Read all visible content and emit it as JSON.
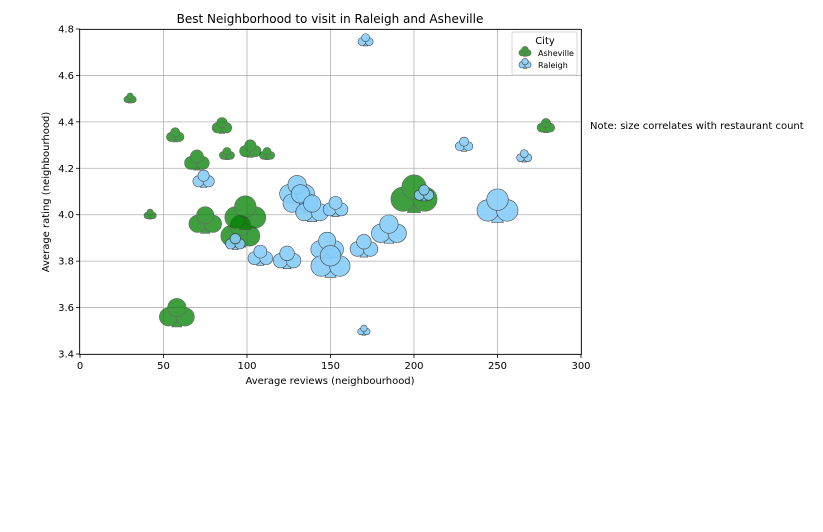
{
  "chart_data": {
    "type": "scatter",
    "title": "Best Neighborhood to visit in Raleigh and Asheville",
    "xlabel": "Average reviews (neighbourhood)",
    "ylabel": "Average rating (neighbourhood)",
    "xlim": [
      0,
      300
    ],
    "ylim": [
      3.4,
      4.8
    ],
    "xticks": [
      "0",
      "50",
      "100",
      "150",
      "200",
      "250",
      "300"
    ],
    "yticks": [
      "3.4",
      "3.6",
      "3.8",
      "4.0",
      "4.2",
      "4.4",
      "4.6",
      "4.8"
    ],
    "grid": true,
    "marker": "club",
    "legend": {
      "title": "City",
      "placement": "top-right"
    },
    "size_encodes": "restaurant count",
    "series": [
      {
        "name": "Asheville",
        "color": "#008000",
        "points": [
          {
            "x": 30,
            "y": 4.5,
            "size": 2
          },
          {
            "x": 42,
            "y": 4.0,
            "size": 2
          },
          {
            "x": 57,
            "y": 4.34,
            "size": 4
          },
          {
            "x": 58,
            "y": 3.57,
            "size": 16
          },
          {
            "x": 70,
            "y": 4.23,
            "size": 8
          },
          {
            "x": 75,
            "y": 3.97,
            "size": 14
          },
          {
            "x": 85,
            "y": 4.38,
            "size": 5
          },
          {
            "x": 88,
            "y": 4.26,
            "size": 3
          },
          {
            "x": 96,
            "y": 3.92,
            "size": 20
          },
          {
            "x": 99,
            "y": 4.0,
            "size": 22
          },
          {
            "x": 102,
            "y": 4.28,
            "size": 6
          },
          {
            "x": 112,
            "y": 4.26,
            "size": 3
          },
          {
            "x": 200,
            "y": 4.08,
            "size": 28
          },
          {
            "x": 279,
            "y": 4.38,
            "size": 4
          }
        ]
      },
      {
        "name": "Raleigh",
        "color": "#87cefa",
        "points": [
          {
            "x": 74,
            "y": 4.15,
            "size": 6
          },
          {
            "x": 93,
            "y": 3.88,
            "size": 5
          },
          {
            "x": 108,
            "y": 3.82,
            "size": 8
          },
          {
            "x": 124,
            "y": 3.81,
            "size": 10
          },
          {
            "x": 130,
            "y": 4.1,
            "size": 16
          },
          {
            "x": 132,
            "y": 4.06,
            "size": 16
          },
          {
            "x": 139,
            "y": 4.02,
            "size": 14
          },
          {
            "x": 148,
            "y": 3.86,
            "size": 14
          },
          {
            "x": 150,
            "y": 3.79,
            "size": 20
          },
          {
            "x": 153,
            "y": 4.03,
            "size": 8
          },
          {
            "x": 170,
            "y": 3.86,
            "size": 10
          },
          {
            "x": 171,
            "y": 4.75,
            "size": 3
          },
          {
            "x": 170,
            "y": 3.5,
            "size": 2
          },
          {
            "x": 185,
            "y": 3.93,
            "size": 16
          },
          {
            "x": 206,
            "y": 4.09,
            "size": 5
          },
          {
            "x": 230,
            "y": 4.3,
            "size": 4
          },
          {
            "x": 250,
            "y": 4.03,
            "size": 22
          },
          {
            "x": 266,
            "y": 4.25,
            "size": 3
          }
        ]
      }
    ],
    "annotation": "Note: size correlates with restaurant count"
  }
}
